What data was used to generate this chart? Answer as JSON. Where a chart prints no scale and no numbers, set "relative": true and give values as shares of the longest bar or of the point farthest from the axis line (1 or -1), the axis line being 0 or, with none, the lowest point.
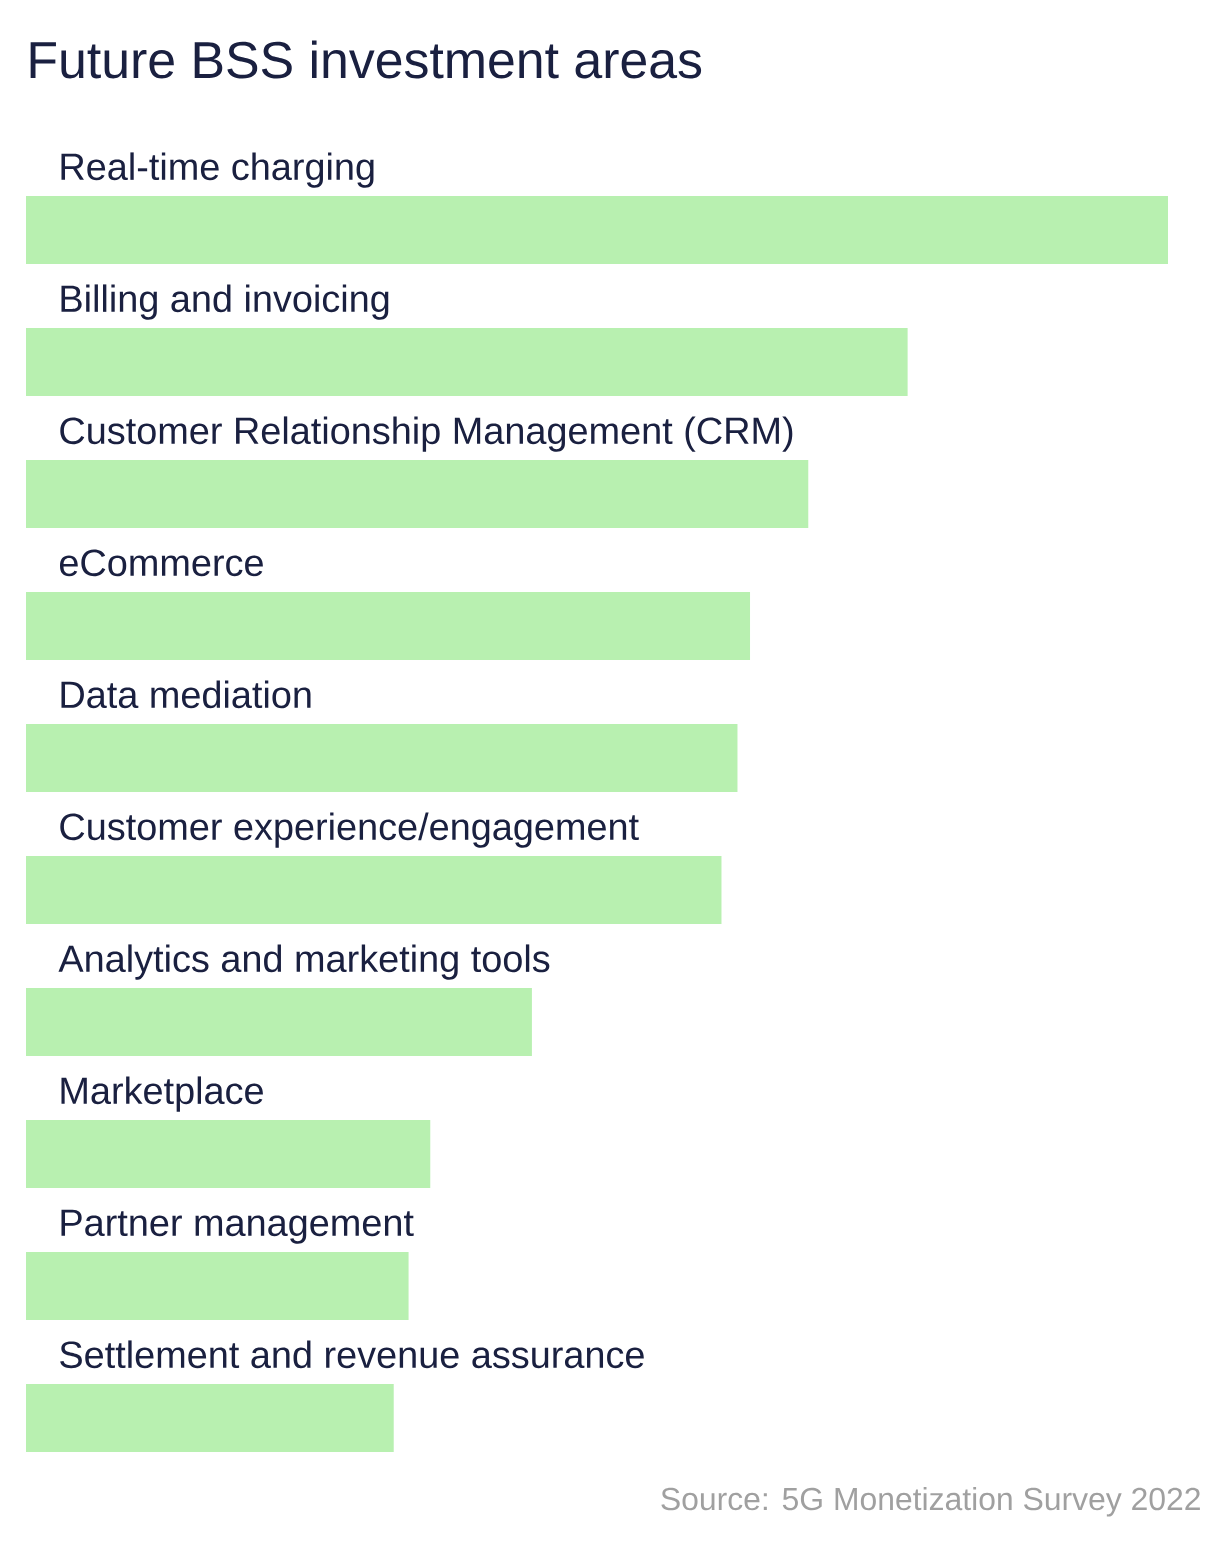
{
  "chart_data": {
    "type": "bar",
    "orientation": "horizontal",
    "relative": true,
    "title": "Future BSS investment areas",
    "categories": [
      "Real-time charging",
      "Billing and invoicing",
      "Customer Relationship Management (CRM)",
      "eCommerce",
      "Data mediation",
      "Customer experience/engagement",
      "Analytics and marketing tools",
      "Marketplace",
      "Partner management",
      "Settlement and revenue assurance"
    ],
    "values": [
      1,
      0.772,
      0.685,
      0.634,
      0.623,
      0.609,
      0.443,
      0.354,
      0.335,
      0.322
    ],
    "color": "#b8f0b0",
    "annotations": [
      "Source: 5G Monetization Survey 2022"
    ]
  }
}
